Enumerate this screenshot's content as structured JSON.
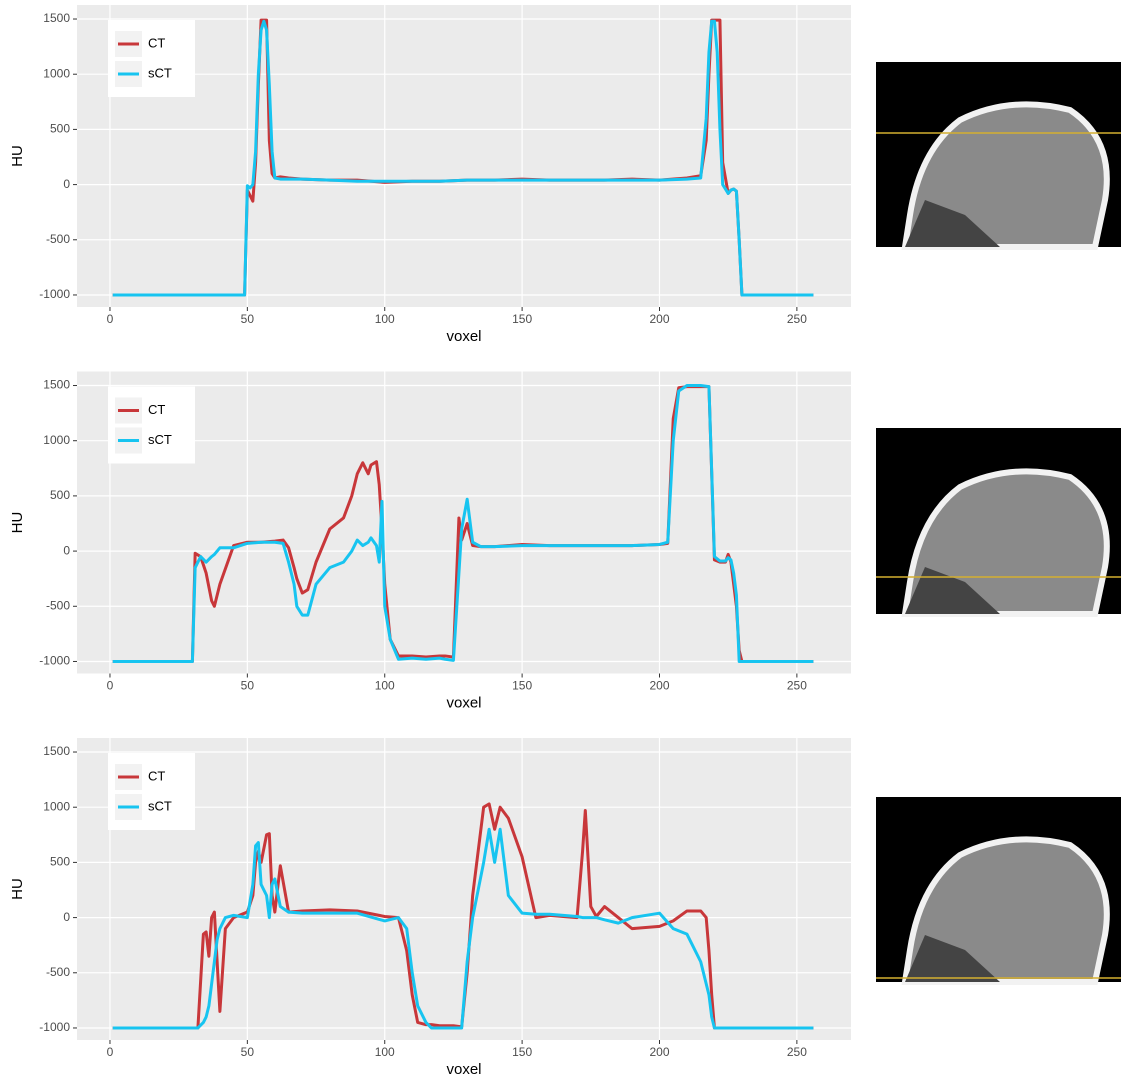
{
  "chart_data": [
    {
      "type": "line",
      "x_label": "voxel",
      "y_label": "HU",
      "x": [
        1,
        49,
        50,
        51,
        52,
        53,
        54,
        55,
        56,
        57,
        58,
        59,
        60,
        62,
        65,
        70,
        80,
        90,
        100,
        110,
        120,
        130,
        140,
        150,
        160,
        170,
        180,
        190,
        200,
        210,
        215,
        217,
        218,
        219,
        220,
        221,
        222,
        223,
        225,
        226,
        227,
        228,
        229,
        230,
        256
      ],
      "series": [
        {
          "name": "CT",
          "color": "#c8373a",
          "values": [
            -1000,
            -1000,
            -50,
            -100,
            -150,
            200,
            900,
            1490,
            1490,
            1490,
            400,
            100,
            60,
            70,
            60,
            50,
            40,
            40,
            20,
            30,
            30,
            40,
            40,
            50,
            40,
            40,
            40,
            50,
            40,
            60,
            80,
            400,
            1000,
            1490,
            1490,
            1490,
            1490,
            200,
            -80,
            -50,
            -40,
            -60,
            -500,
            -1000,
            -1000
          ]
        },
        {
          "name": "sCT",
          "color": "#17c4f0",
          "values": [
            -1000,
            -1000,
            -10,
            -30,
            0,
            300,
            1000,
            1400,
            1480,
            1400,
            900,
            300,
            60,
            50,
            50,
            50,
            40,
            30,
            30,
            30,
            30,
            40,
            40,
            40,
            40,
            40,
            40,
            40,
            40,
            50,
            60,
            600,
            1200,
            1480,
            1480,
            1200,
            500,
            0,
            -80,
            -50,
            -40,
            -60,
            -500,
            -1000,
            -1000
          ]
        }
      ],
      "xlim": [
        -12,
        269.7
      ],
      "ylim": [
        -1109,
        1627
      ],
      "xticks": [
        0,
        50,
        100,
        150,
        200,
        250
      ],
      "yticks": [
        -1000,
        -500,
        0,
        500,
        1000,
        1500
      ],
      "grid": true,
      "legend": "top-left"
    },
    {
      "type": "line",
      "x_label": "voxel",
      "y_label": "HU",
      "x": [
        1,
        30,
        31,
        33,
        35,
        37,
        38,
        40,
        45,
        50,
        55,
        60,
        63,
        65,
        67,
        68,
        70,
        72,
        75,
        80,
        85,
        88,
        90,
        92,
        94,
        95,
        97,
        98,
        99,
        100,
        102,
        105,
        110,
        115,
        120,
        122,
        125,
        127,
        128,
        130,
        132,
        135,
        140,
        150,
        160,
        170,
        180,
        190,
        200,
        203,
        205,
        207,
        210,
        215,
        218,
        220,
        222,
        224,
        225,
        226,
        227,
        228,
        229,
        230,
        256
      ],
      "series": [
        {
          "name": "CT",
          "color": "#c8373a",
          "values": [
            -1000,
            -1000,
            -20,
            -50,
            -200,
            -450,
            -500,
            -300,
            50,
            80,
            80,
            90,
            100,
            30,
            -150,
            -250,
            -380,
            -350,
            -100,
            200,
            300,
            500,
            700,
            800,
            700,
            780,
            810,
            600,
            200,
            -300,
            -800,
            -950,
            -950,
            -960,
            -950,
            -950,
            -960,
            300,
            100,
            250,
            50,
            40,
            40,
            60,
            50,
            50,
            50,
            50,
            60,
            70,
            1200,
            1480,
            1490,
            1490,
            1490,
            -80,
            -100,
            -100,
            -30,
            -100,
            -300,
            -500,
            -900,
            -1000,
            -1000
          ]
        },
        {
          "name": "sCT",
          "color": "#17c4f0",
          "values": [
            -1000,
            -1000,
            -150,
            -50,
            -100,
            -50,
            -30,
            30,
            30,
            70,
            80,
            80,
            70,
            -100,
            -300,
            -500,
            -580,
            -580,
            -300,
            -150,
            -100,
            0,
            100,
            50,
            80,
            120,
            50,
            -100,
            450,
            -500,
            -800,
            -980,
            -970,
            -980,
            -970,
            -980,
            -990,
            -200,
            200,
            470,
            80,
            40,
            40,
            50,
            50,
            50,
            50,
            50,
            60,
            80,
            1000,
            1450,
            1500,
            1500,
            1490,
            -50,
            -90,
            -90,
            -60,
            -80,
            -200,
            -400,
            -1000,
            -1000,
            -1000
          ]
        }
      ],
      "xlim": [
        -12,
        269.7
      ],
      "ylim": [
        -1109,
        1627
      ],
      "xticks": [
        0,
        50,
        100,
        150,
        200,
        250
      ],
      "yticks": [
        -1000,
        -500,
        0,
        500,
        1000,
        1500
      ],
      "grid": true,
      "legend": "top-left"
    },
    {
      "type": "line",
      "x_label": "voxel",
      "y_label": "HU",
      "x": [
        1,
        32,
        34,
        35,
        36,
        37,
        38,
        39,
        40,
        42,
        45,
        50,
        52,
        53,
        54,
        55,
        57,
        58,
        59,
        60,
        62,
        65,
        70,
        80,
        90,
        100,
        105,
        108,
        110,
        112,
        115,
        117,
        120,
        125,
        128,
        130,
        132,
        134,
        136,
        138,
        140,
        142,
        145,
        150,
        155,
        160,
        165,
        170,
        172,
        173,
        175,
        177,
        180,
        185,
        190,
        200,
        205,
        210,
        215,
        217,
        218,
        219,
        220,
        256
      ],
      "series": [
        {
          "name": "CT",
          "color": "#c8373a",
          "values": [
            -1000,
            -1000,
            -150,
            -130,
            -350,
            0,
            50,
            -400,
            -850,
            -100,
            0,
            50,
            200,
            500,
            600,
            500,
            750,
            760,
            200,
            50,
            470,
            50,
            60,
            70,
            60,
            10,
            0,
            -300,
            -700,
            -950,
            -970,
            -970,
            -980,
            -980,
            -990,
            -500,
            200,
            600,
            1000,
            1030,
            800,
            1000,
            900,
            550,
            0,
            20,
            10,
            0,
            600,
            970,
            100,
            10,
            100,
            0,
            -100,
            -80,
            -30,
            60,
            60,
            0,
            -300,
            -700,
            -1000,
            -1000
          ]
        },
        {
          "name": "sCT",
          "color": "#17c4f0",
          "values": [
            -1000,
            -1000,
            -950,
            -900,
            -800,
            -600,
            -400,
            -200,
            -100,
            0,
            20,
            0,
            300,
            650,
            680,
            300,
            200,
            0,
            300,
            350,
            100,
            50,
            40,
            40,
            40,
            -30,
            0,
            -100,
            -500,
            -800,
            -950,
            -1000,
            -1000,
            -1000,
            -1000,
            -400,
            0,
            250,
            500,
            800,
            500,
            800,
            200,
            40,
            30,
            30,
            20,
            10,
            0,
            0,
            0,
            0,
            -20,
            -50,
            0,
            40,
            -100,
            -150,
            -400,
            -600,
            -700,
            -900,
            -1000,
            -1000
          ]
        }
      ],
      "xlim": [
        -12,
        269.7
      ],
      "ylim": [
        -1109,
        1627
      ],
      "xticks": [
        0,
        50,
        100,
        150,
        200,
        250
      ],
      "yticks": [
        -1000,
        -500,
        0,
        500,
        1000,
        1500
      ],
      "grid": true,
      "legend": "top-left"
    }
  ]
}
